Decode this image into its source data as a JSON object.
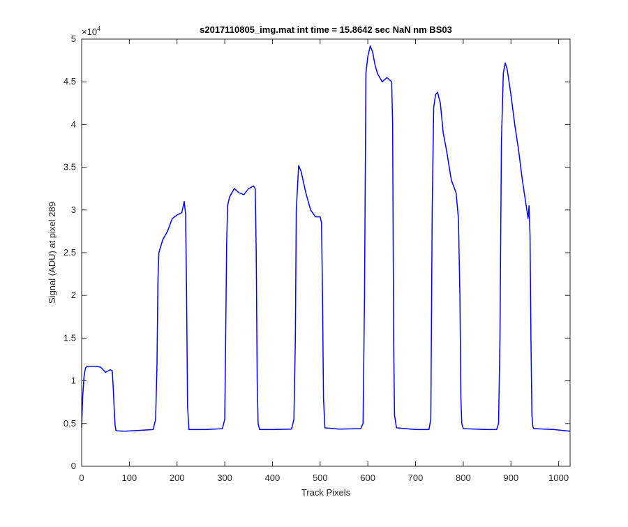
{
  "chart_data": {
    "type": "line",
    "title": "s2017110805_img.mat int time = 15.8642 sec  NaN nm BS03",
    "xlabel": "Track Pixels",
    "ylabel": "Signal (ADU) at pixel 289",
    "xlim": [
      0,
      1024
    ],
    "ylim": [
      0,
      50000
    ],
    "y_exponent_label": "×10",
    "y_exponent_power": "4",
    "xticks": [
      0,
      100,
      200,
      300,
      400,
      500,
      600,
      700,
      800,
      900,
      1000
    ],
    "xtick_labels": [
      "0",
      "100",
      "200",
      "300",
      "400",
      "500",
      "600",
      "700",
      "800",
      "900",
      "1000"
    ],
    "yticks": [
      0,
      5000,
      10000,
      15000,
      20000,
      25000,
      30000,
      35000,
      40000,
      45000,
      50000
    ],
    "ytick_labels": [
      "0",
      "0.5",
      "1",
      "1.5",
      "2",
      "2.5",
      "3",
      "3.5",
      "4",
      "4.5",
      "5"
    ],
    "grid": false,
    "legend": "none",
    "series": [
      {
        "color": "#0000ff",
        "x": [
          0,
          2,
          5,
          8,
          12,
          20,
          30,
          40,
          50,
          60,
          64,
          66,
          68,
          70,
          72,
          75,
          90,
          120,
          150,
          155,
          158,
          160,
          162,
          164,
          170,
          180,
          190,
          200,
          210,
          215,
          218,
          220,
          222,
          225,
          260,
          295,
          300,
          302,
          304,
          306,
          310,
          320,
          330,
          340,
          350,
          360,
          364,
          366,
          368,
          370,
          373,
          400,
          440,
          445,
          448,
          450,
          455,
          460,
          470,
          480,
          490,
          500,
          503,
          505,
          507,
          510,
          540,
          585,
          590,
          593,
          596,
          600,
          605,
          610,
          615,
          620,
          630,
          640,
          650,
          652,
          654,
          656,
          660,
          700,
          728,
          732,
          735,
          738,
          742,
          746,
          752,
          758,
          765,
          775,
          785,
          790,
          793,
          795,
          797,
          800,
          850,
          870,
          874,
          877,
          880,
          884,
          888,
          892,
          900,
          908,
          916,
          924,
          932,
          936,
          938,
          940,
          942,
          944,
          946,
          948,
          950,
          990,
          1024
        ],
        "y": [
          4500,
          8000,
          10500,
          11500,
          11700,
          11700,
          11700,
          11600,
          11000,
          11300,
          11200,
          9500,
          7000,
          4800,
          4200,
          4150,
          4100,
          4200,
          4300,
          5500,
          12000,
          22000,
          25000,
          25400,
          26500,
          27500,
          29000,
          29400,
          29700,
          31000,
          29500,
          20000,
          7000,
          4300,
          4300,
          4400,
          5500,
          15000,
          26000,
          30500,
          31500,
          32500,
          32000,
          31800,
          32500,
          32800,
          32500,
          25000,
          10000,
          5000,
          4300,
          4300,
          4350,
          5500,
          15000,
          30000,
          35200,
          34500,
          32000,
          30000,
          29200,
          29200,
          28500,
          20000,
          8000,
          4500,
          4350,
          4400,
          5000,
          20000,
          46000,
          48000,
          49200,
          48500,
          47000,
          46000,
          45000,
          45500,
          45000,
          40000,
          15000,
          6000,
          4500,
          4300,
          4300,
          5500,
          30000,
          42000,
          43500,
          43800,
          42500,
          39000,
          37000,
          33500,
          32000,
          29000,
          20000,
          8000,
          5000,
          4400,
          4300,
          4300,
          5000,
          15000,
          38000,
          46000,
          47200,
          46500,
          43500,
          40000,
          37000,
          33500,
          30500,
          29000,
          30500,
          27000,
          15000,
          6000,
          4600,
          4400,
          4400,
          4300,
          4100
        ]
      }
    ]
  }
}
